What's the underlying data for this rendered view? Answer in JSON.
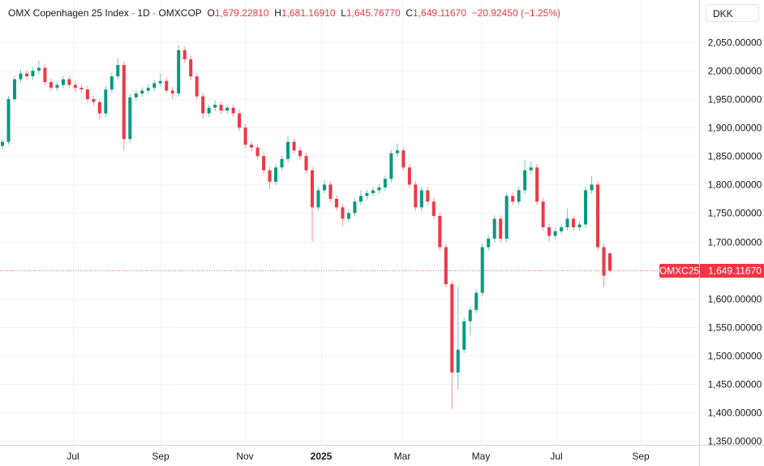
{
  "legend": {
    "title": "OMX Copenhagen 25 Index · 1D · OMXCOP",
    "open_label": "O",
    "open": "1,679.22810",
    "high_label": "H",
    "high": "1,681.16910",
    "low_label": "L",
    "low": "1,645.76770",
    "close_label": "C",
    "close": "1,649.11670",
    "change": "−20.92450 (−1.25%)"
  },
  "currency_button": "DKK",
  "colors": {
    "up": "#089981",
    "down": "#f23645",
    "grid": "#f0f3fa",
    "axis_text": "#131722"
  },
  "chart_data": {
    "type": "candlestick",
    "symbol_label": "OMXC25",
    "last_price_label": "1,649.11670",
    "last_price": 1649.1167,
    "ylim": [
      1350,
      2050
    ],
    "y_ticks": [
      "2,050.00000",
      "2,000.00000",
      "1,950.00000",
      "1,900.00000",
      "1,850.00000",
      "1,800.00000",
      "1,750.00000",
      "1,700.00000",
      "1,600.00000",
      "1,550.00000",
      "1,500.00000",
      "1,450.00000",
      "1,400.00000",
      "1,350.00000"
    ],
    "y_tick_values": [
      2050,
      2000,
      1950,
      1900,
      1850,
      1800,
      1750,
      1700,
      1600,
      1550,
      1500,
      1450,
      1400,
      1350
    ],
    "x_ticks": [
      "Jul",
      "Sep",
      "Nov",
      "2025",
      "Mar",
      "May",
      "Jul",
      "Sep"
    ],
    "grid": true,
    "candles_ohlc": [
      [
        1868,
        1880,
        1862,
        1875
      ],
      [
        1875,
        1956,
        1870,
        1950
      ],
      [
        1950,
        1991,
        1944,
        1985
      ],
      [
        1985,
        2001,
        1979,
        1995
      ],
      [
        1995,
        2001,
        1984,
        1990
      ],
      [
        1990,
        2006,
        1984,
        2000
      ],
      [
        2000,
        2018,
        1994,
        2005
      ],
      [
        2005,
        2011,
        1974,
        1980
      ],
      [
        1980,
        1986,
        1964,
        1970
      ],
      [
        1970,
        1981,
        1964,
        1975
      ],
      [
        1975,
        1991,
        1969,
        1985
      ],
      [
        1985,
        1991,
        1969,
        1975
      ],
      [
        1975,
        1981,
        1962,
        1970
      ],
      [
        1970,
        1976,
        1961,
        1967
      ],
      [
        1967,
        1973,
        1944,
        1950
      ],
      [
        1950,
        1956,
        1939,
        1945
      ],
      [
        1945,
        1951,
        1915,
        1925
      ],
      [
        1925,
        1973,
        1919,
        1967
      ],
      [
        1967,
        1996,
        1961,
        1990
      ],
      [
        1990,
        2022,
        1984,
        2010
      ],
      [
        2010,
        2016,
        1860,
        1880
      ],
      [
        1880,
        1959,
        1874,
        1953
      ],
      [
        1953,
        1966,
        1947,
        1960
      ],
      [
        1960,
        1971,
        1954,
        1965
      ],
      [
        1965,
        1976,
        1959,
        1970
      ],
      [
        1970,
        1984,
        1964,
        1978
      ],
      [
        1978,
        1995,
        1972,
        1982
      ],
      [
        1982,
        1988,
        1959,
        1965
      ],
      [
        1965,
        1971,
        1950,
        1960
      ],
      [
        1960,
        2045,
        1954,
        2036
      ],
      [
        2036,
        2042,
        2014,
        2020
      ],
      [
        2020,
        2026,
        1984,
        1990
      ],
      [
        1990,
        1996,
        1949,
        1955
      ],
      [
        1955,
        1961,
        1915,
        1925
      ],
      [
        1925,
        1941,
        1919,
        1935
      ],
      [
        1935,
        1948,
        1929,
        1940
      ],
      [
        1940,
        1946,
        1924,
        1930
      ],
      [
        1930,
        1941,
        1924,
        1935
      ],
      [
        1935,
        1941,
        1919,
        1925
      ],
      [
        1925,
        1931,
        1894,
        1900
      ],
      [
        1900,
        1906,
        1864,
        1870
      ],
      [
        1870,
        1876,
        1859,
        1865
      ],
      [
        1865,
        1871,
        1844,
        1850
      ],
      [
        1850,
        1856,
        1819,
        1825
      ],
      [
        1825,
        1831,
        1792,
        1805
      ],
      [
        1805,
        1836,
        1799,
        1830
      ],
      [
        1830,
        1851,
        1824,
        1845
      ],
      [
        1845,
        1885,
        1839,
        1875
      ],
      [
        1875,
        1881,
        1854,
        1860
      ],
      [
        1860,
        1866,
        1844,
        1850
      ],
      [
        1850,
        1856,
        1819,
        1825
      ],
      [
        1825,
        1831,
        1700,
        1760
      ],
      [
        1760,
        1796,
        1754,
        1790
      ],
      [
        1790,
        1808,
        1784,
        1800
      ],
      [
        1800,
        1806,
        1769,
        1775
      ],
      [
        1775,
        1781,
        1754,
        1760
      ],
      [
        1760,
        1766,
        1728,
        1740
      ],
      [
        1740,
        1756,
        1734,
        1750
      ],
      [
        1750,
        1776,
        1744,
        1770
      ],
      [
        1770,
        1790,
        1764,
        1780
      ],
      [
        1780,
        1791,
        1774,
        1785
      ],
      [
        1785,
        1796,
        1779,
        1790
      ],
      [
        1790,
        1801,
        1784,
        1795
      ],
      [
        1795,
        1816,
        1789,
        1810
      ],
      [
        1810,
        1861,
        1804,
        1855
      ],
      [
        1855,
        1872,
        1849,
        1860
      ],
      [
        1860,
        1866,
        1824,
        1830
      ],
      [
        1830,
        1836,
        1794,
        1800
      ],
      [
        1800,
        1806,
        1754,
        1760
      ],
      [
        1760,
        1796,
        1754,
        1790
      ],
      [
        1790,
        1796,
        1764,
        1770
      ],
      [
        1770,
        1776,
        1739,
        1745
      ],
      [
        1745,
        1751,
        1684,
        1690
      ],
      [
        1690,
        1696,
        1619,
        1625
      ],
      [
        1625,
        1631,
        1405,
        1470
      ],
      [
        1470,
        1620,
        1440,
        1510
      ],
      [
        1510,
        1566,
        1504,
        1560
      ],
      [
        1560,
        1586,
        1535,
        1580
      ],
      [
        1580,
        1616,
        1574,
        1610
      ],
      [
        1610,
        1696,
        1604,
        1690
      ],
      [
        1690,
        1711,
        1684,
        1705
      ],
      [
        1705,
        1746,
        1699,
        1740
      ],
      [
        1740,
        1746,
        1699,
        1705
      ],
      [
        1705,
        1786,
        1699,
        1780
      ],
      [
        1780,
        1786,
        1764,
        1770
      ],
      [
        1770,
        1796,
        1764,
        1790
      ],
      [
        1790,
        1843,
        1784,
        1825
      ],
      [
        1825,
        1840,
        1819,
        1830
      ],
      [
        1830,
        1836,
        1764,
        1770
      ],
      [
        1770,
        1776,
        1719,
        1725
      ],
      [
        1725,
        1731,
        1700,
        1710
      ],
      [
        1710,
        1724,
        1704,
        1718
      ],
      [
        1718,
        1731,
        1712,
        1725
      ],
      [
        1725,
        1758,
        1719,
        1740
      ],
      [
        1740,
        1746,
        1719,
        1725
      ],
      [
        1725,
        1736,
        1719,
        1730
      ],
      [
        1730,
        1796,
        1724,
        1790
      ],
      [
        1790,
        1815,
        1784,
        1800
      ],
      [
        1800,
        1806,
        1684,
        1690
      ],
      [
        1690,
        1696,
        1620,
        1640
      ],
      [
        1679.2281,
        1681.1691,
        1645.7677,
        1649.1167
      ]
    ]
  }
}
